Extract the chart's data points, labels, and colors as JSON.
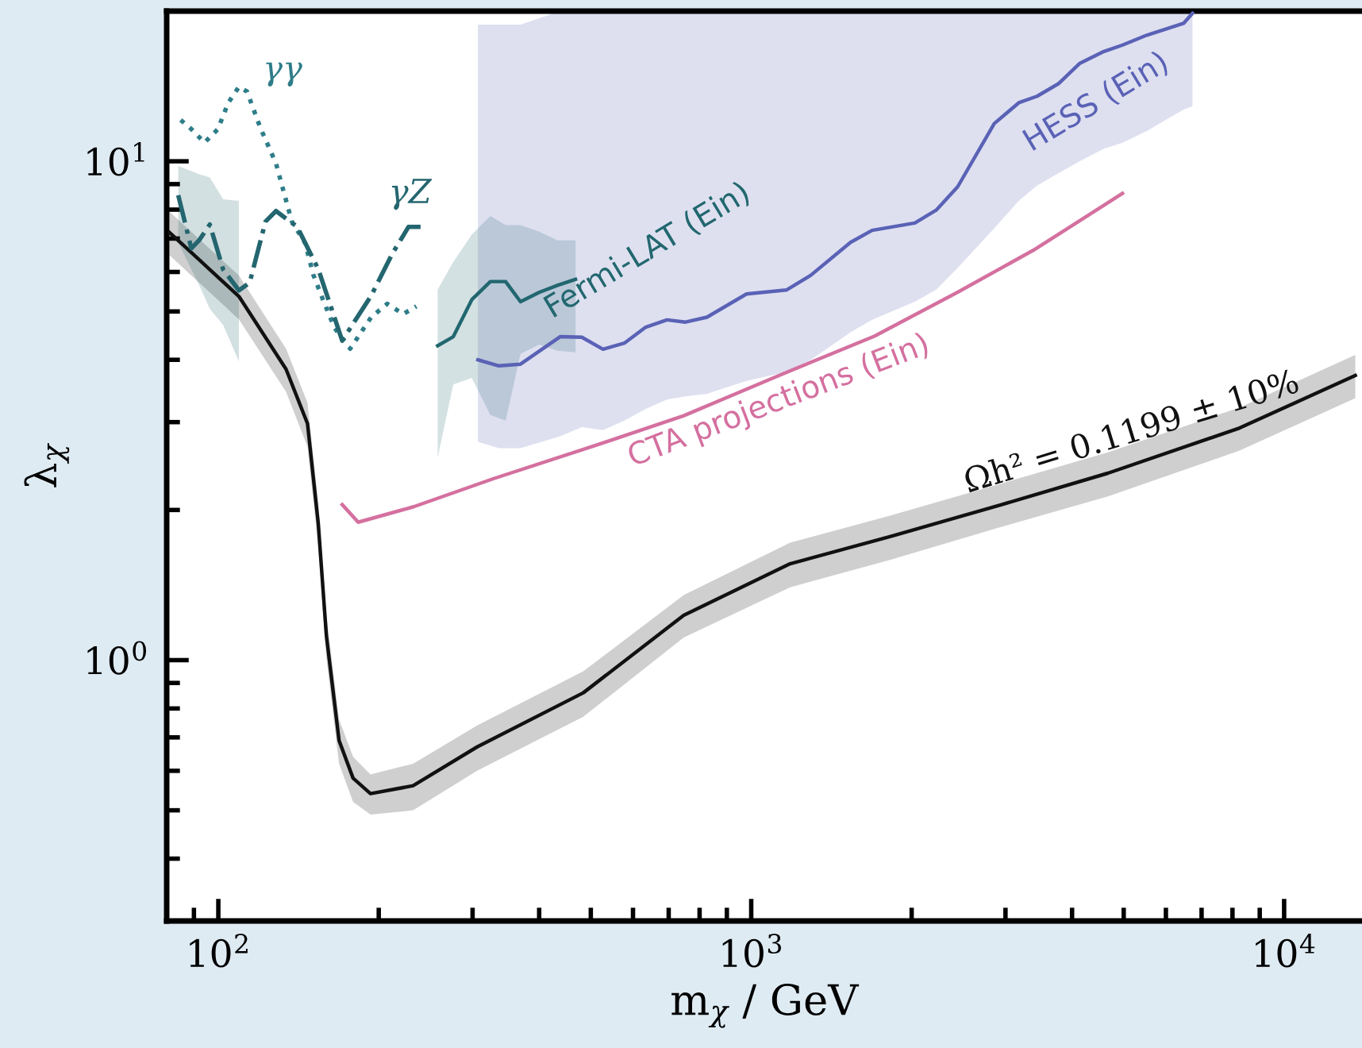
{
  "chart_data": {
    "type": "line",
    "xlabel": "m$_{χ}$ / GeV",
    "ylabel": "λ$_{χ}$",
    "log": "xy",
    "xlim": [
      80,
      14000
    ],
    "ylim": [
      0.3,
      20
    ],
    "xticks": [
      {
        "value": 100,
        "label": "10$^{2}$"
      },
      {
        "value": 1000,
        "label": "10$^{3}$"
      },
      {
        "value": 10000,
        "label": "10$^{4}$"
      }
    ],
    "yticks": [
      {
        "value": 1,
        "label": "10$^{0}$"
      },
      {
        "value": 10,
        "label": "10$^{1}$"
      }
    ],
    "grid": false,
    "legend": false,
    "series": [
      {
        "name": "Ωh² = 0.1199 ± 10%",
        "color": "#111111",
        "line_style": "solid",
        "x": [
          81,
          109.3,
          134,
          147,
          154,
          159.5,
          168.5,
          179,
          193,
          232,
          306,
          484,
          747,
          1183,
          1827,
          2950,
          4670,
          8250,
          13600
        ],
        "values": [
          7.2,
          5.36,
          3.83,
          2.98,
          1.88,
          1.12,
          0.69,
          0.58,
          0.54,
          0.56,
          0.67,
          0.86,
          1.23,
          1.56,
          1.77,
          2.05,
          2.37,
          2.92,
          3.72
        ],
        "lower": [
          6.48,
          4.82,
          3.45,
          2.68,
          1.69,
          1.01,
          0.62,
          0.52,
          0.49,
          0.5,
          0.6,
          0.77,
          1.11,
          1.4,
          1.59,
          1.85,
          2.13,
          2.63,
          3.35
        ],
        "upper": [
          7.92,
          5.9,
          4.21,
          3.28,
          2.07,
          1.23,
          0.76,
          0.64,
          0.59,
          0.62,
          0.74,
          0.95,
          1.35,
          1.72,
          1.95,
          2.26,
          2.61,
          3.21,
          4.09
        ]
      },
      {
        "name": "γγ",
        "color": "#2e7d89",
        "line_style": "dotted",
        "x": [
          85,
          89,
          94.2,
          99.8,
          104.4,
          109.3,
          113.2,
          119.8,
          128.3,
          137.4,
          145.5,
          150.7,
          157.6,
          165.1,
          176.8,
          193.6,
          207.5,
          222.2,
          235.3
        ],
        "values": [
          12.1,
          11.6,
          10.9,
          11.6,
          13.1,
          14.1,
          13.8,
          11.7,
          9.9,
          7.57,
          6.86,
          5.93,
          5.24,
          4.64,
          4.21,
          4.87,
          5.18,
          4.94,
          5.12
        ]
      },
      {
        "name": "γZ",
        "color": "#24666f",
        "line_style": "dashdot",
        "x": [
          84.1,
          89,
          92.1,
          96.4,
          102.1,
          109.3,
          114.5,
          122.6,
          128.3,
          140.6,
          154.1,
          170.8,
          193.6,
          212.3,
          227.5,
          240.7
        ],
        "values": [
          8.55,
          6.69,
          6.95,
          7.47,
          6.07,
          5.51,
          5.71,
          7.57,
          7.95,
          7.39,
          6.07,
          4.37,
          5.38,
          6.54,
          7.39,
          7.39
        ],
        "lower": [
          6.88,
          6.07,
          5.64,
          5.06,
          4.7,
          3.97,
          null,
          null,
          null,
          null,
          null,
          null,
          null,
          null,
          null,
          null
        ],
        "upper": [
          9.79,
          9.56,
          9.42,
          9.28,
          8.39,
          8.33,
          null,
          null,
          null,
          null,
          null,
          null,
          null,
          null,
          null,
          null
        ]
      },
      {
        "name": "Fermi-LAT (Ein)",
        "color": "#22676f",
        "line_style": "solid",
        "x": [
          258,
          276,
          299,
          324,
          346,
          369,
          400,
          433,
          468
        ],
        "values": [
          4.27,
          4.45,
          5.28,
          5.74,
          5.74,
          5.23,
          5.46,
          5.64,
          5.8
        ],
        "lower": [
          2.55,
          3.57,
          3.68,
          3.1,
          3.02,
          4.11,
          4.29,
          4.17,
          4.14
        ],
        "upper": [
          5.53,
          6.28,
          7.13,
          7.77,
          7.45,
          7.45,
          7.23,
          6.94,
          6.94
        ]
      },
      {
        "name": "HESS (Ein)",
        "color": "#5a62b6",
        "line_style": "solid",
        "x": [
          307,
          336,
          369,
          438,
          481,
          527,
          578,
          634,
          695,
          753,
          826,
          980,
          1164,
          1294,
          1536,
          1686,
          2028,
          2224,
          2440,
          2858,
          3177,
          3438,
          3770,
          4130,
          4590,
          4975,
          5525,
          6475,
          6730
        ],
        "values": [
          4.0,
          3.89,
          3.92,
          4.45,
          4.44,
          4.2,
          4.32,
          4.65,
          4.81,
          4.76,
          4.87,
          5.42,
          5.52,
          5.91,
          6.88,
          7.27,
          7.52,
          7.98,
          8.89,
          11.9,
          13.1,
          13.5,
          14.3,
          15.7,
          16.6,
          17.1,
          17.9,
          18.9,
          19.8
        ],
        "lower": [
          2.74,
          2.66,
          2.66,
          2.81,
          2.93,
          2.89,
          3.02,
          3.19,
          3.33,
          3.38,
          3.42,
          3.63,
          3.78,
          4.0,
          4.54,
          4.81,
          5.23,
          5.53,
          6.11,
          7.34,
          8.33,
          8.94,
          9.46,
          10.0,
          10.6,
          10.9,
          11.5,
          12.7,
          12.9
        ],
        "upper": [
          18.8,
          18.8,
          18.8,
          20,
          20,
          20,
          20,
          20,
          20,
          20,
          20,
          20,
          20,
          20,
          20,
          20,
          20,
          20,
          20,
          20,
          20,
          20,
          20,
          20,
          20,
          20,
          20,
          20,
          20
        ]
      },
      {
        "name": "CTA projections (Ein)",
        "color": "#d4709f",
        "line_style": "solid",
        "x": [
          170.8,
          183,
          232.6,
          328,
          513.5,
          747,
          1134,
          1702,
          2437,
          3382,
          4973
        ],
        "values": [
          2.05,
          1.89,
          2.03,
          2.31,
          2.7,
          3.09,
          3.73,
          4.46,
          5.46,
          6.63,
          8.62
        ]
      }
    ]
  }
}
